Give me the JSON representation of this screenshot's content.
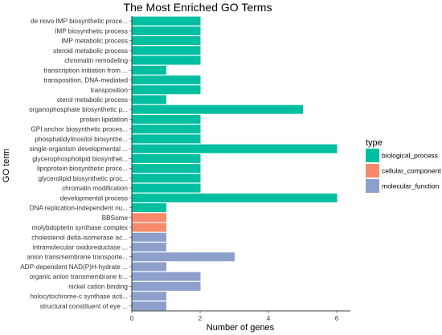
{
  "chart_data": {
    "type": "bar",
    "orientation": "horizontal",
    "title": "The Most Enriched GO Terms",
    "xlabel": "Number of genes",
    "ylabel": "GO term",
    "xlim": [
      0,
      6.4
    ],
    "xticks": [
      0,
      2,
      4,
      6
    ],
    "grid": false,
    "legend": {
      "title": "type",
      "position": "right",
      "entries": [
        {
          "name": "biological_process",
          "color": "#00BFA0"
        },
        {
          "name": "cellular_component",
          "color": "#F8896A"
        },
        {
          "name": "molecular_function",
          "color": "#8DA0CB"
        }
      ]
    },
    "categories": [
      "de novo IMP biosynthetic proce...",
      "IMP biosynthetic process",
      "IMP metabolic process",
      "steroid metabolic process",
      "chromatin remodeling",
      "transcription initiation from ...",
      "transposition, DNA-mediated",
      "transposition",
      "sterol metabolic process",
      "organophosphate biosynthetic p...",
      "protein lipidation",
      "GPI anchor biosynthetic proces...",
      "phosphatidylinositol biosynthe...",
      "single-organism developmental ...",
      "glycerophospholipid biosynthet...",
      "lipoprotein biosynthetic proce...",
      "glycerolipid biosynthetic proc...",
      "chromatin modification",
      "developmental process",
      "DNA replication-independent nu...",
      "BBSome",
      "molybdopterin synthase complex",
      "cholestenol delta-isomerase ac...",
      "intramolecular oxidoreductase ...",
      "anion transmembrane transporte...",
      "ADP-dependent NAD(P)H-hydrate ...",
      "organic anion transmembrane tr...",
      "nickel cation binding",
      "holocytochrome-c synthase acti...",
      "structural constituent of eye ..."
    ],
    "values": [
      2,
      2,
      2,
      2,
      2,
      1,
      2,
      2,
      1,
      5,
      2,
      2,
      2,
      6,
      2,
      2,
      2,
      2,
      6,
      1,
      1,
      1,
      1,
      1,
      3,
      1,
      2,
      2,
      1,
      1
    ],
    "types": [
      "biological_process",
      "biological_process",
      "biological_process",
      "biological_process",
      "biological_process",
      "biological_process",
      "biological_process",
      "biological_process",
      "biological_process",
      "biological_process",
      "biological_process",
      "biological_process",
      "biological_process",
      "biological_process",
      "biological_process",
      "biological_process",
      "biological_process",
      "biological_process",
      "biological_process",
      "biological_process",
      "cellular_component",
      "cellular_component",
      "molecular_function",
      "molecular_function",
      "molecular_function",
      "molecular_function",
      "molecular_function",
      "molecular_function",
      "molecular_function",
      "molecular_function"
    ]
  }
}
